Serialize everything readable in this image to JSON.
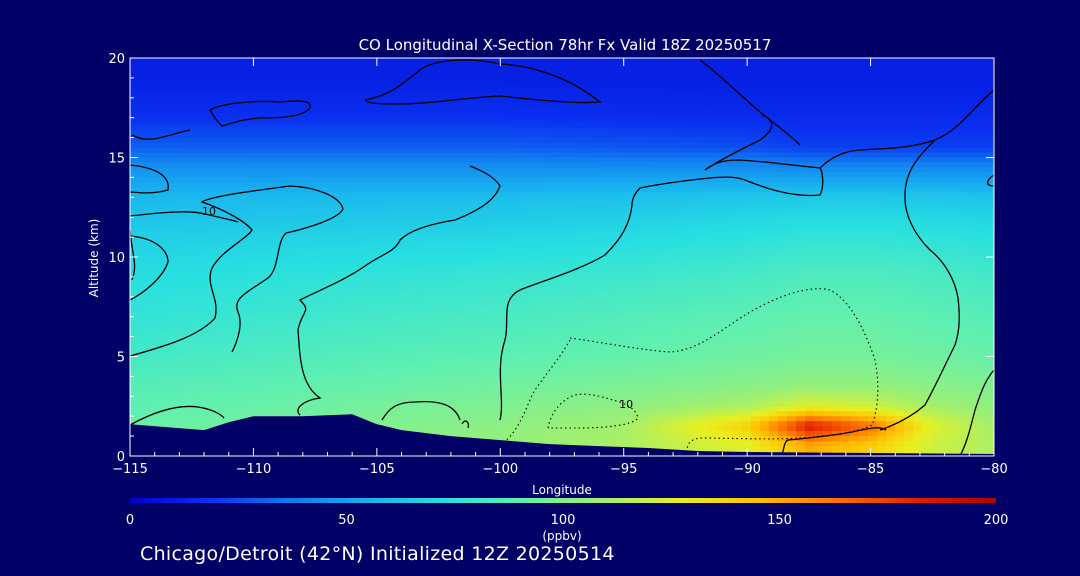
{
  "chart_data": {
    "type": "heatmap",
    "title": "CO Longitudinal X-Section 78hr  Fx Valid 18Z 20250517",
    "xlabel": "Longitude",
    "ylabel": "Altitude (km)",
    "xlim": [
      -115,
      -80
    ],
    "ylim": [
      0,
      20
    ],
    "x_ticks": [
      -115,
      -110,
      -105,
      -100,
      -95,
      -90,
      -85,
      -80
    ],
    "y_ticks": [
      0,
      5,
      10,
      15,
      20
    ],
    "x_tick_labels": [
      "−115",
      "−110",
      "−105",
      "−100",
      "−95",
      "−90",
      "−85",
      "−80"
    ],
    "y_tick_labels": [
      "0",
      "5",
      "10",
      "15",
      "20"
    ],
    "colorbar": {
      "min": 0,
      "max": 200,
      "ticks": [
        0,
        50,
        100,
        150,
        200
      ],
      "tick_labels": [
        "0",
        "50",
        "100",
        "150",
        "200"
      ],
      "units": "(ppbv)",
      "colors": [
        "#0000cc",
        "#0a30f0",
        "#1078f0",
        "#18b0f0",
        "#28e0e0",
        "#60f0b0",
        "#a0f070",
        "#e8f020",
        "#ffc000",
        "#ff7000",
        "#e02000",
        "#b00000"
      ]
    },
    "contour_labels": [
      {
        "text": "10",
        "lon": -111.8,
        "alt": 12.1
      },
      {
        "text": "10",
        "lon": -94.9,
        "alt": 2.4
      }
    ],
    "terrain": [
      [
        -115,
        1.6
      ],
      [
        -112,
        1.3
      ],
      [
        -111,
        1.7
      ],
      [
        -110,
        2.0
      ],
      [
        -108,
        2.0
      ],
      [
        -106,
        2.1
      ],
      [
        -105,
        1.6
      ],
      [
        -104,
        1.3
      ],
      [
        -102,
        1.0
      ],
      [
        -100,
        0.8
      ],
      [
        -98,
        0.6
      ],
      [
        -96,
        0.5
      ],
      [
        -94,
        0.4
      ],
      [
        -92,
        0.25
      ],
      [
        -90,
        0.2
      ],
      [
        -85,
        0.15
      ],
      [
        -80,
        0.1
      ]
    ],
    "field": {
      "description_lat": "42N",
      "lon": [
        -115,
        -110,
        -105,
        -100,
        -95,
        -90,
        -87.5,
        -85,
        -82.5,
        -80
      ],
      "alt": [
        0.5,
        1.5,
        2.5,
        3.5,
        5,
        7,
        9,
        11,
        13,
        14.5,
        15.5,
        17,
        19
      ],
      "values": [
        [
          95,
          98,
          102,
          106,
          112,
          125,
          150,
          140,
          120,
          112
        ],
        [
          93,
          96,
          100,
          104,
          110,
          140,
          185,
          165,
          125,
          110
        ],
        [
          90,
          93,
          97,
          100,
          104,
          112,
          125,
          120,
          110,
          105
        ],
        [
          88,
          90,
          93,
          96,
          99,
          103,
          106,
          106,
          103,
          100
        ],
        [
          82,
          85,
          88,
          90,
          92,
          95,
          97,
          97,
          95,
          93
        ],
        [
          76,
          79,
          82,
          84,
          87,
          90,
          92,
          92,
          90,
          88
        ],
        [
          72,
          74,
          76,
          78,
          80,
          83,
          86,
          86,
          84,
          82
        ],
        [
          66,
          67,
          68,
          69,
          71,
          74,
          76,
          76,
          75,
          73
        ],
        [
          58,
          58,
          59,
          60,
          61,
          63,
          64,
          64,
          63,
          62
        ],
        [
          45,
          44,
          44,
          44,
          44,
          44,
          42,
          42,
          42,
          42
        ],
        [
          30,
          30,
          30,
          30,
          28,
          26,
          22,
          22,
          22,
          22
        ],
        [
          18,
          18,
          18,
          18,
          17,
          16,
          16,
          16,
          16,
          16
        ],
        [
          12,
          12,
          12,
          12,
          12,
          12,
          12,
          12,
          12,
          12
        ]
      ]
    }
  },
  "footer": "Chicago/Detroit (42°N) Initialized 12Z 20250514"
}
